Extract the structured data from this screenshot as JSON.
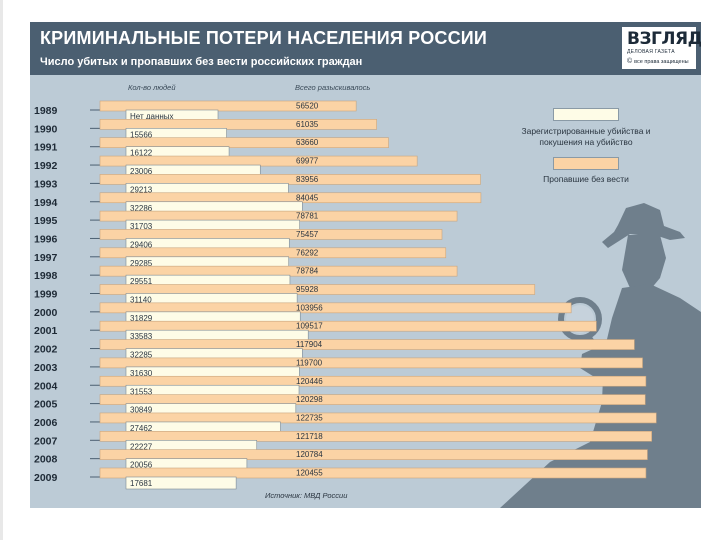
{
  "header": {
    "title": "КРИМИНАЛЬНЫЕ ПОТЕРИ НАСЕЛЕНИЯ РОССИИ",
    "subtitle": "Число убитых и пропавших без вести российских граждан"
  },
  "logo": {
    "name": "ВЗГЛЯД",
    "tagline": "ДЕЛОВАЯ ГАЗЕТА",
    "rights": "все права защищены",
    "copyright": "©"
  },
  "colors": {
    "header_bg": "#4b5f71",
    "panel_bg": "#bccbd6",
    "killed_bar": "#fefce7",
    "missing_bar": "#fbd3a5",
    "silhouette": "#6f7f8c"
  },
  "chart_data": {
    "type": "bar",
    "orientation": "horizontal",
    "title": "КРИМИНАЛЬНЫЕ ПОТЕРИ НАСЕЛЕНИЯ РОССИИ",
    "subtitle": "Число убитых и пропавших без вести российских граждан",
    "column_headers": {
      "victims": "Кол-во людей",
      "total": "Всего разыскивалось"
    },
    "categories": [
      "1989",
      "1990",
      "1991",
      "1992",
      "1993",
      "1994",
      "1995",
      "1996",
      "1997",
      "1998",
      "1999",
      "2000",
      "2001",
      "2002",
      "2003",
      "2004",
      "2005",
      "2006",
      "2007",
      "2008",
      "2009"
    ],
    "series": [
      {
        "name": "Зарегистрированные убийства и покушения на убийство",
        "labels": [
          "Нет данных",
          "15566",
          "16122",
          "23006",
          "29213",
          "32286",
          "31703",
          "29406",
          "29285",
          "29551",
          "31140",
          "31829",
          "33583",
          "32285",
          "31630",
          "31553",
          "30849",
          "27462",
          "22227",
          "20056",
          "17681"
        ],
        "values": [
          null,
          15566,
          16122,
          23006,
          29213,
          32286,
          31703,
          29406,
          29285,
          29551,
          31140,
          31829,
          33583,
          32285,
          31630,
          31553,
          30849,
          27462,
          22227,
          20056,
          17681
        ]
      },
      {
        "name": "Пропавшие без вести",
        "labels": [
          "56520",
          "61035",
          "63660",
          "69977",
          "83956",
          "84045",
          "78781",
          "75457",
          "76292",
          "78784",
          "95928",
          "103956",
          "109517",
          "117904",
          "119700",
          "120446",
          "120298",
          "122735",
          "121718",
          "120784",
          "120455"
        ],
        "values": [
          56520,
          61035,
          63660,
          69977,
          83956,
          84045,
          78781,
          75457,
          76292,
          78784,
          95928,
          103956,
          109517,
          117904,
          119700,
          120446,
          120298,
          122735,
          121718,
          120784,
          120455
        ]
      }
    ],
    "legend": [
      "Зарегистрированные убийства и покушения на убийство",
      "Пропавшие без вести"
    ],
    "legend_position": "right",
    "source": "Источник: МВД России"
  }
}
